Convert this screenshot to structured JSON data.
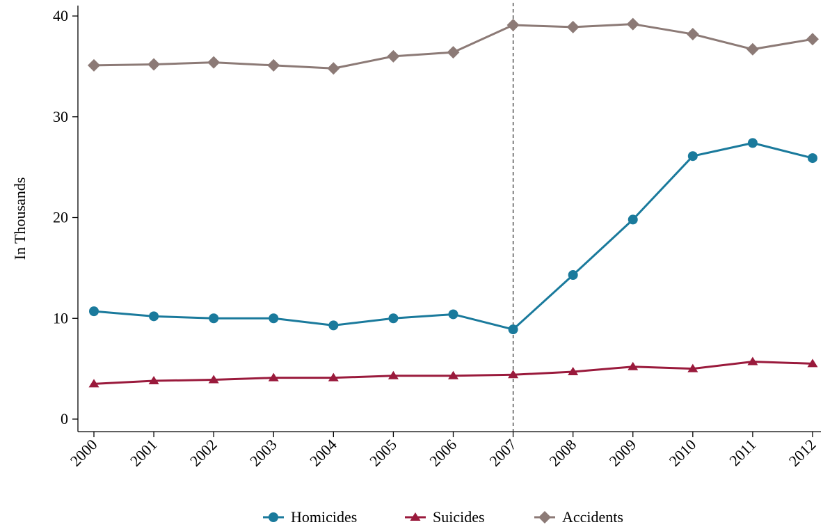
{
  "chart_data": {
    "type": "line",
    "title": "",
    "xlabel": "",
    "ylabel": "In Thousands",
    "x": [
      "2000",
      "2001",
      "2002",
      "2003",
      "2004",
      "2005",
      "2006",
      "2007",
      "2008",
      "2009",
      "2010",
      "2011",
      "2012"
    ],
    "ylim": [
      0,
      40
    ],
    "yticks": [
      "0",
      "10",
      "20",
      "30",
      "40"
    ],
    "grid": false,
    "reference_line_x": "2007",
    "legend_position": "bottom",
    "series": [
      {
        "name": "Homicides",
        "marker": "circle",
        "color": "#1a7a9c",
        "values": [
          10.7,
          10.2,
          10.0,
          10.0,
          9.3,
          10.0,
          10.4,
          8.9,
          14.3,
          19.8,
          26.1,
          27.4,
          25.9
        ]
      },
      {
        "name": "Suicides",
        "marker": "triangle",
        "color": "#9a1a3c",
        "values": [
          3.5,
          3.8,
          3.9,
          4.1,
          4.1,
          4.3,
          4.3,
          4.4,
          4.7,
          5.2,
          5.0,
          5.7,
          5.5
        ]
      },
      {
        "name": "Accidents",
        "marker": "diamond",
        "color": "#8c7a76",
        "values": [
          35.1,
          35.2,
          35.4,
          35.1,
          34.8,
          36.0,
          36.4,
          39.1,
          38.9,
          39.2,
          38.2,
          36.7,
          37.7
        ]
      }
    ]
  }
}
